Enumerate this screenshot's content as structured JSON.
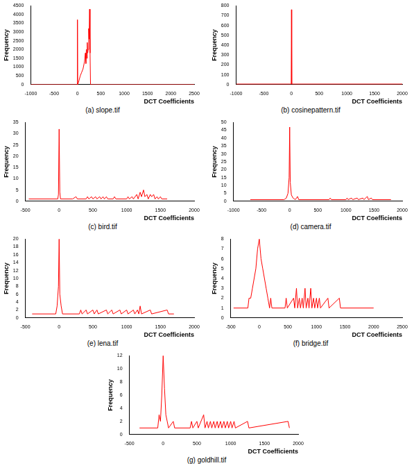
{
  "chart_data": [
    {
      "type": "line",
      "title": "(a) slope.tif",
      "x_label": "DCT Coefficients",
      "y_label": "Frequency",
      "color": "#ff0000",
      "grid": false,
      "x": [
        -1000,
        -5,
        0,
        5,
        30,
        60,
        90,
        120,
        150,
        170,
        180,
        190,
        200,
        210,
        220,
        230,
        240,
        250,
        260,
        270,
        280,
        2500
      ],
      "values": [
        0,
        0,
        3700,
        0,
        200,
        500,
        700,
        900,
        1300,
        1800,
        1200,
        2000,
        1500,
        2400,
        1800,
        2000,
        3200,
        2600,
        4300,
        1800,
        0,
        0
      ],
      "xlim": [
        -1000,
        2500
      ],
      "xticks": [
        -1000,
        -500,
        0,
        500,
        1000,
        1500,
        2000,
        2500
      ],
      "ylim": [
        0,
        4500
      ],
      "yticks": [
        0,
        500,
        1000,
        1500,
        2000,
        2500,
        3000,
        3500,
        4000,
        4500
      ]
    },
    {
      "type": "line",
      "title": "(b) cosinepattern.tif",
      "x_label": "DCT Coefficients",
      "y_label": "Frequency",
      "color": "#ff0000",
      "grid": false,
      "x": [
        -1000,
        -5,
        0,
        5,
        2000
      ],
      "values": [
        5,
        5,
        760,
        5,
        5
      ],
      "xlim": [
        -1000,
        2000
      ],
      "xticks": [
        -1000,
        -500,
        0,
        500,
        1000,
        1500,
        2000
      ],
      "ylim": [
        0,
        800
      ],
      "yticks": [
        0,
        100,
        200,
        300,
        400,
        500,
        600,
        700,
        800
      ]
    },
    {
      "type": "line",
      "title": "(c) bird.tif",
      "x_label": "DCT Coefficients",
      "y_label": "Frequency",
      "color": "#ff0000",
      "grid": false,
      "x": [
        -450,
        -20,
        -10,
        0,
        10,
        20,
        200,
        250,
        270,
        400,
        420,
        440,
        480,
        500,
        540,
        560,
        600,
        620,
        650,
        670,
        700,
        720,
        800,
        820,
        840,
        1000,
        1020,
        1040,
        1080,
        1100,
        1150,
        1170,
        1200,
        1220,
        1250,
        1270,
        1300,
        1320,
        1350,
        1370,
        1400,
        1420,
        1450,
        1470,
        1500,
        1520,
        1600
      ],
      "values": [
        1,
        1,
        3,
        32,
        4,
        1,
        1,
        2,
        1,
        1,
        2,
        1,
        2,
        1,
        2,
        1,
        2,
        1,
        2,
        1,
        2,
        1,
        1,
        2,
        1,
        1,
        2,
        1,
        2,
        1,
        3,
        1,
        4,
        2,
        5,
        2,
        3,
        1,
        3,
        2,
        3,
        1,
        2,
        1,
        2,
        1,
        1
      ],
      "xlim": [
        -500,
        2000
      ],
      "xticks": [
        -500,
        0,
        500,
        1000,
        1500,
        2000
      ],
      "ylim": [
        0,
        35
      ],
      "yticks": [
        0,
        5,
        10,
        15,
        20,
        25,
        30,
        35
      ]
    },
    {
      "type": "line",
      "title": "(d) camera.tif",
      "x_label": "DCT Coefficients",
      "y_label": "Frequency",
      "color": "#ff0000",
      "grid": false,
      "x": [
        -700,
        -100,
        -60,
        -30,
        -10,
        0,
        10,
        30,
        60,
        100,
        140,
        160,
        700,
        720,
        740,
        1000,
        1020,
        1040,
        1100,
        1120,
        1200,
        1220,
        1300,
        1320,
        1380,
        1400,
        1450,
        1470,
        1800
      ],
      "values": [
        1,
        1,
        2,
        5,
        15,
        47,
        12,
        4,
        2,
        1,
        3,
        1,
        1,
        2,
        1,
        1,
        2,
        1,
        2,
        1,
        2,
        1,
        2,
        1,
        3,
        1,
        2,
        1,
        1
      ],
      "xlim": [
        -1000,
        2000
      ],
      "xticks": [
        -1000,
        -500,
        0,
        500,
        1000,
        1500,
        2000
      ],
      "ylim": [
        0,
        50
      ],
      "yticks": [
        0,
        5,
        10,
        15,
        20,
        25,
        30,
        35,
        40,
        45,
        50
      ]
    },
    {
      "type": "line",
      "title": "(e) lena.tif",
      "x_label": "DCT Coefficients",
      "y_label": "Frequency",
      "color": "#ff0000",
      "grid": false,
      "x": [
        -400,
        -50,
        -30,
        -10,
        0,
        10,
        30,
        50,
        300,
        320,
        340,
        400,
        420,
        500,
        520,
        560,
        580,
        700,
        720,
        780,
        800,
        900,
        920,
        1000,
        1020,
        1100,
        1120,
        1160,
        1180,
        1200,
        1220,
        1350,
        1370,
        1600,
        1620,
        1700
      ],
      "values": [
        1,
        1,
        3,
        8,
        20,
        6,
        3,
        1,
        1,
        2,
        1,
        2,
        1,
        2,
        1,
        2,
        1,
        2,
        1,
        2,
        1,
        2,
        1,
        2,
        1,
        2,
        1,
        2,
        1,
        3,
        1,
        2,
        1,
        2,
        1,
        1
      ],
      "xlim": [
        -500,
        2000
      ],
      "xticks": [
        -500,
        0,
        500,
        1000,
        1500,
        2000
      ],
      "ylim": [
        0,
        20
      ],
      "yticks": [
        0,
        2,
        4,
        6,
        8,
        10,
        12,
        14,
        16,
        18,
        20
      ]
    },
    {
      "type": "line",
      "title": "(f) bridge.tif",
      "x_label": "DCT Coefficients",
      "y_label": "Frequency",
      "color": "#ff0000",
      "grid": false,
      "x": [
        -450,
        -200,
        -180,
        -150,
        -120,
        -90,
        -60,
        -30,
        0,
        30,
        60,
        90,
        120,
        150,
        180,
        200,
        220,
        450,
        470,
        490,
        600,
        620,
        650,
        670,
        700,
        720,
        750,
        770,
        800,
        820,
        850,
        870,
        900,
        920,
        950,
        970,
        1000,
        1020,
        1050,
        1070,
        1200,
        1220,
        1400,
        1420,
        2000
      ],
      "values": [
        1,
        1,
        2,
        2,
        3,
        4,
        5,
        7,
        8,
        6,
        5,
        4,
        3,
        2,
        1,
        2,
        1,
        1,
        2,
        1,
        2,
        1,
        3,
        1,
        2,
        1,
        2,
        1,
        3,
        1,
        2,
        1,
        3,
        1,
        2,
        1,
        2,
        1,
        2,
        1,
        2,
        1,
        2,
        1,
        1
      ],
      "xlim": [
        -500,
        2500
      ],
      "xticks": [
        -500,
        0,
        500,
        1000,
        1500,
        2000,
        2500
      ],
      "ylim": [
        0,
        8
      ],
      "yticks": [
        0,
        1,
        2,
        3,
        4,
        5,
        6,
        7,
        8
      ]
    },
    {
      "type": "line",
      "title": "(g) goldhill.tif",
      "x_label": "DCT Coefficients",
      "y_label": "Frequency",
      "color": "#ff0000",
      "grid": false,
      "x": [
        -350,
        -80,
        -60,
        -40,
        -20,
        0,
        20,
        40,
        60,
        80,
        150,
        170,
        400,
        420,
        440,
        500,
        520,
        600,
        620,
        650,
        670,
        700,
        720,
        750,
        770,
        800,
        820,
        850,
        870,
        900,
        920,
        950,
        970,
        1000,
        1020,
        1050,
        1070,
        1250,
        1270,
        1850,
        1870
      ],
      "values": [
        1,
        1,
        3,
        2,
        6,
        12,
        7,
        3,
        2,
        1,
        2,
        1,
        1,
        2,
        1,
        2,
        1,
        3,
        1,
        2,
        1,
        2,
        1,
        2,
        1,
        2,
        1,
        2,
        1,
        2,
        1,
        2,
        1,
        2,
        1,
        2,
        1,
        2,
        1,
        2,
        1
      ],
      "xlim": [
        -500,
        2000
      ],
      "xticks": [
        -500,
        0,
        500,
        1000,
        1500,
        2000
      ],
      "ylim": [
        0,
        12
      ],
      "yticks": [
        0,
        2,
        4,
        6,
        8,
        10,
        12
      ]
    }
  ]
}
